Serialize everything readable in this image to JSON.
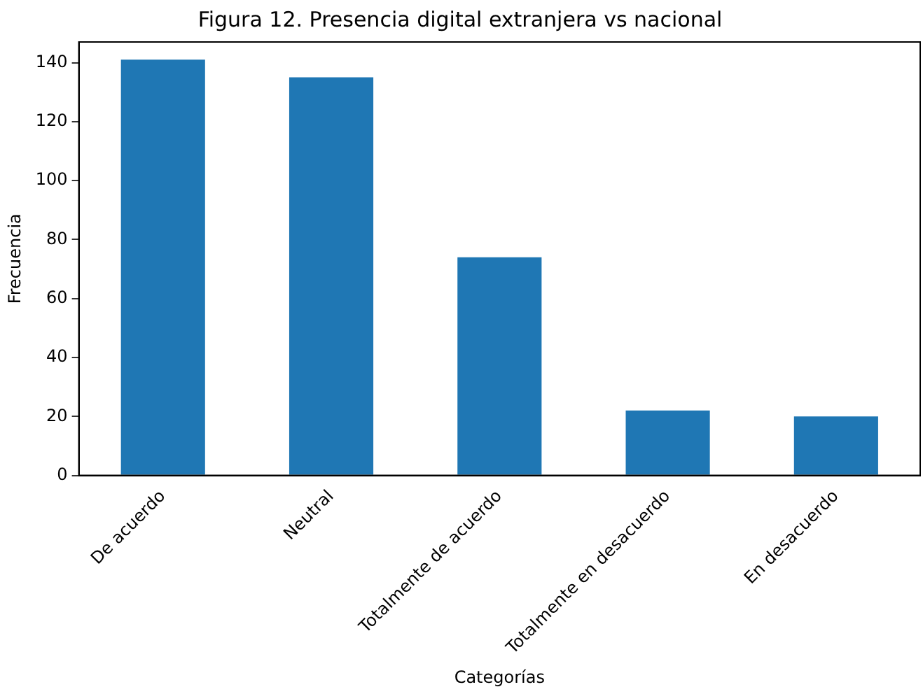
{
  "chart_data": {
    "type": "bar",
    "title": "Figura 12. Presencia digital extranjera vs nacional",
    "xlabel": "Categorías",
    "ylabel": "Frecuencia",
    "categories": [
      "De acuerdo",
      "Neutral",
      "Totalmente de acuerdo",
      "Totalmente en desacuerdo",
      "En desacuerdo"
    ],
    "values": [
      141,
      135,
      74,
      22,
      20
    ],
    "color": "#1f77b4",
    "ylim": [
      0,
      147
    ],
    "yticks": [
      0,
      20,
      40,
      60,
      80,
      100,
      120,
      140
    ],
    "grid": false,
    "legend": false
  }
}
